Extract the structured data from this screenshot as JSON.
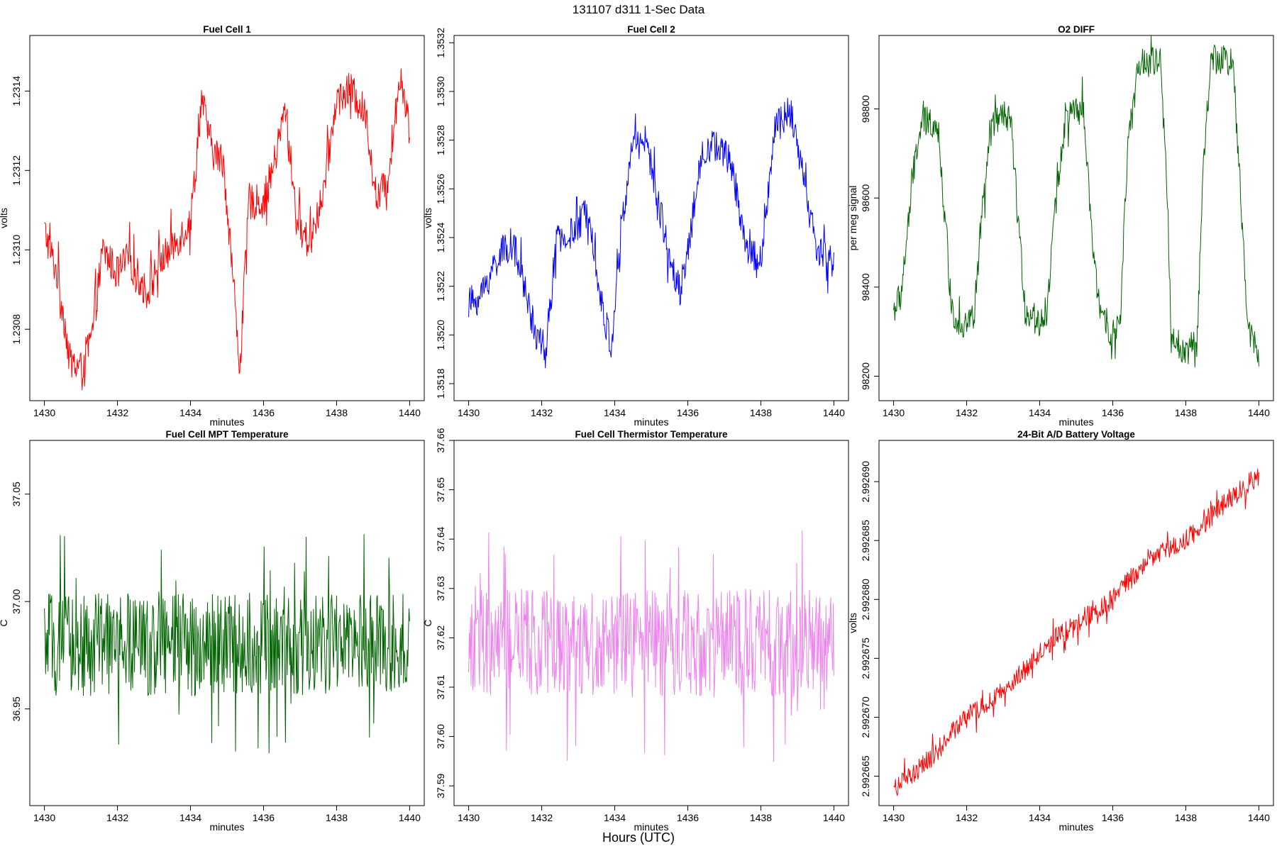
{
  "page_title": "131107   d311   1-Sec Data",
  "footer_label": "Hours (UTC)",
  "chart_data": [
    {
      "type": "line",
      "title": "Fuel Cell 1",
      "xlabel": "minutes",
      "ylabel": "volts",
      "color": "#ff0000",
      "xlim": [
        1429.6,
        1440.4
      ],
      "ylim": [
        1.23062,
        1.23154
      ],
      "xticks": [
        1430,
        1432,
        1434,
        1436,
        1438,
        1440
      ],
      "yticks": [
        "1.2308",
        "1.2310",
        "1.2312",
        "1.2314"
      ],
      "x": [
        1430.0,
        1430.4,
        1430.7,
        1431.0,
        1431.3,
        1431.6,
        1432.0,
        1432.3,
        1432.8,
        1433.1,
        1433.6,
        1434.0,
        1434.3,
        1434.6,
        1434.9,
        1435.15,
        1435.35,
        1435.6,
        1436.0,
        1436.3,
        1436.6,
        1436.9,
        1437.2,
        1437.6,
        1438.0,
        1438.4,
        1438.8,
        1439.1,
        1439.4,
        1439.75,
        1440.0
      ],
      "y": [
        1.23105,
        1.23092,
        1.23072,
        1.2307,
        1.23078,
        1.231,
        1.23094,
        1.23098,
        1.23089,
        1.23096,
        1.23102,
        1.23107,
        1.23138,
        1.23125,
        1.23122,
        1.23095,
        1.2307,
        1.23112,
        1.23112,
        1.23122,
        1.23136,
        1.23108,
        1.23102,
        1.23112,
        1.23138,
        1.2314,
        1.23134,
        1.23112,
        1.23118,
        1.23145,
        1.2313
      ],
      "noise": 4.5e-05
    },
    {
      "type": "line",
      "title": "Fuel Cell 2",
      "xlabel": "minutes",
      "ylabel": "volts",
      "color": "#0000ff",
      "xlim": [
        1429.6,
        1440.4
      ],
      "ylim": [
        1.35173,
        1.35323
      ],
      "xticks": [
        1430,
        1432,
        1434,
        1436,
        1438,
        1440
      ],
      "yticks": [
        "1.3518",
        "1.3520",
        "1.3522",
        "1.3524",
        "1.3526",
        "1.3528",
        "1.3530",
        "1.3532"
      ],
      "x": [
        1430.0,
        1430.3,
        1430.8,
        1431.2,
        1431.5,
        1431.8,
        1432.1,
        1432.4,
        1432.9,
        1433.3,
        1433.6,
        1433.9,
        1434.2,
        1434.5,
        1434.8,
        1435.1,
        1435.5,
        1435.8,
        1436.1,
        1436.4,
        1436.8,
        1437.2,
        1437.6,
        1438.0,
        1438.4,
        1438.8,
        1439.2,
        1439.5,
        1439.8,
        1440.0
      ],
      "y": [
        1.35213,
        1.35215,
        1.35232,
        1.35238,
        1.35222,
        1.35202,
        1.35192,
        1.35238,
        1.35242,
        1.35253,
        1.35215,
        1.35195,
        1.35245,
        1.3528,
        1.35282,
        1.35262,
        1.35232,
        1.35218,
        1.35245,
        1.35276,
        1.35278,
        1.3527,
        1.35236,
        1.3523,
        1.35285,
        1.35292,
        1.35262,
        1.35236,
        1.35232,
        1.3523
      ],
      "noise": 7e-05
    },
    {
      "type": "line",
      "title": "O2 DIFF",
      "xlabel": "minutes",
      "ylabel": "per meg signal",
      "color": "#006400",
      "xlim": [
        1429.6,
        1440.4
      ],
      "ylim": [
        98145,
        98965
      ],
      "xticks": [
        1430,
        1432,
        1434,
        1436,
        1438,
        1440
      ],
      "yticks": [
        "98200",
        "98400",
        "98600",
        "98800"
      ],
      "x": [
        1430.0,
        1430.2,
        1430.6,
        1430.8,
        1431.2,
        1431.4,
        1431.6,
        1431.9,
        1432.2,
        1432.4,
        1432.7,
        1433.2,
        1433.4,
        1433.6,
        1434.0,
        1434.2,
        1434.4,
        1434.7,
        1435.2,
        1435.4,
        1435.6,
        1436.0,
        1436.2,
        1436.4,
        1436.7,
        1437.3,
        1437.5,
        1437.6,
        1438.0,
        1438.3,
        1438.5,
        1438.7,
        1439.3,
        1439.5,
        1439.7,
        1440.0
      ],
      "y": [
        98350,
        98380,
        98700,
        98770,
        98770,
        98560,
        98340,
        98320,
        98330,
        98550,
        98770,
        98780,
        98560,
        98350,
        98320,
        98350,
        98560,
        98780,
        98800,
        98540,
        98370,
        98290,
        98320,
        98700,
        98900,
        98905,
        98600,
        98280,
        98260,
        98270,
        98700,
        98910,
        98910,
        98600,
        98310,
        98260
      ],
      "noise": 35
    },
    {
      "type": "line",
      "title": "Fuel Cell MPT Temperature",
      "xlabel": "minutes",
      "ylabel": "C",
      "color": "#006400",
      "xlim": [
        1429.6,
        1440.4
      ],
      "ylim": [
        36.905,
        37.075
      ],
      "xticks": [
        1430,
        1432,
        1434,
        1436,
        1438,
        1440
      ],
      "yticks": [
        "36.95",
        "37.00",
        "37.05"
      ],
      "x": [
        1430.0,
        1440.0
      ],
      "y": [
        36.98,
        36.98
      ],
      "noise": 0.024
    },
    {
      "type": "line",
      "title": "Fuel Cell Thermistor Temperature",
      "xlabel": "minutes",
      "ylabel": "C",
      "color": "#ee82ee",
      "xlim": [
        1429.6,
        1440.4
      ],
      "ylim": [
        37.586,
        37.66
      ],
      "xticks": [
        1430,
        1432,
        1434,
        1436,
        1438,
        1440
      ],
      "yticks": [
        "37.59",
        "37.60",
        "37.61",
        "37.62",
        "37.63",
        "37.64",
        "37.65",
        "37.66"
      ],
      "x": [
        1430.0,
        1440.0
      ],
      "y": [
        37.619,
        37.619
      ],
      "noise": 0.011
    },
    {
      "type": "line",
      "title": "24-Bit A/D Battery Voltage",
      "xlabel": "minutes",
      "ylabel": "volts",
      "color": "#ff0000",
      "xlim": [
        1429.6,
        1440.4
      ],
      "ylim": [
        2.9926625,
        2.9926935
      ],
      "xticks": [
        1430,
        1432,
        1434,
        1436,
        1438,
        1440
      ],
      "yticks": [
        "2.992665",
        "2.992670",
        "2.992675",
        "2.992680",
        "2.992685",
        "2.992690"
      ],
      "x": [
        1430.0,
        1430.5,
        1431.0,
        1432.0,
        1433.0,
        1434.0,
        1435.0,
        1436.0,
        1437.0,
        1438.0,
        1439.0,
        1440.0
      ],
      "y": [
        2.992664,
        2.992665,
        2.9926665,
        2.99267,
        2.992672,
        2.9926755,
        2.992678,
        2.99268,
        2.9926835,
        2.992685,
        2.992688,
        2.9926905
      ],
      "noise": 9e-07
    }
  ]
}
